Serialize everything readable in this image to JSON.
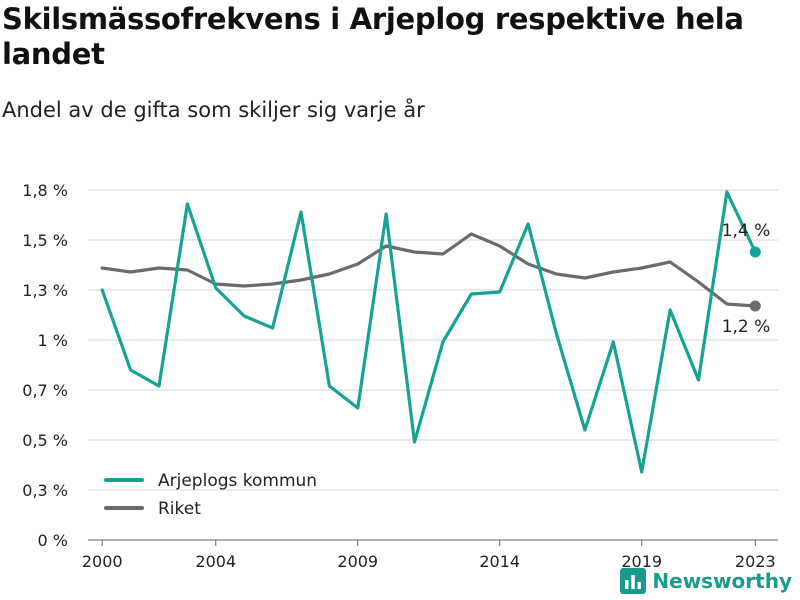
{
  "header": {
    "title": "Skilsmässofrekvens i Arjeplog respektive hela landet",
    "subtitle": "Andel av de gifta som skiljer sig varje år"
  },
  "brand": {
    "name": "Newsworthy",
    "icon": "bar-chart-icon",
    "color": "#1a9a8e"
  },
  "chart_data": {
    "type": "line",
    "x": [
      2000,
      2001,
      2002,
      2003,
      2004,
      2005,
      2006,
      2007,
      2008,
      2009,
      2010,
      2011,
      2012,
      2013,
      2014,
      2015,
      2016,
      2017,
      2018,
      2019,
      2020,
      2021,
      2022,
      2023
    ],
    "x_ticks": [
      2000,
      2004,
      2009,
      2014,
      2019,
      2023
    ],
    "y_ticks": [
      0,
      0.3,
      0.5,
      0.7,
      1,
      1.3,
      1.5,
      1.8
    ],
    "y_tick_labels": [
      "0 %",
      "0,3 %",
      "0,5 %",
      "0,7 %",
      "1 %",
      "1,3 %",
      "1,5 %",
      "1,8 %"
    ],
    "ylim": [
      0,
      1.75
    ],
    "grid": true,
    "legend_position": "bottom-left",
    "series": [
      {
        "name": "Arjeplogs kommun",
        "color": "#16a394",
        "values": [
          1.25,
          0.85,
          0.77,
          1.68,
          1.26,
          1.12,
          1.06,
          1.64,
          0.77,
          0.66,
          1.63,
          0.49,
          0.99,
          1.23,
          1.24,
          1.58,
          1.03,
          0.55,
          0.99,
          0.34,
          1.15,
          0.8,
          1.74,
          1.44
        ],
        "end_label": "1,4 %"
      },
      {
        "name": "Riket",
        "color": "#6b6b6e",
        "values": [
          1.36,
          1.34,
          1.36,
          1.35,
          1.28,
          1.27,
          1.28,
          1.3,
          1.33,
          1.38,
          1.47,
          1.44,
          1.43,
          1.53,
          1.47,
          1.38,
          1.33,
          1.31,
          1.34,
          1.36,
          1.39,
          1.29,
          1.18,
          1.17
        ],
        "end_label": "1,2 %"
      }
    ]
  }
}
